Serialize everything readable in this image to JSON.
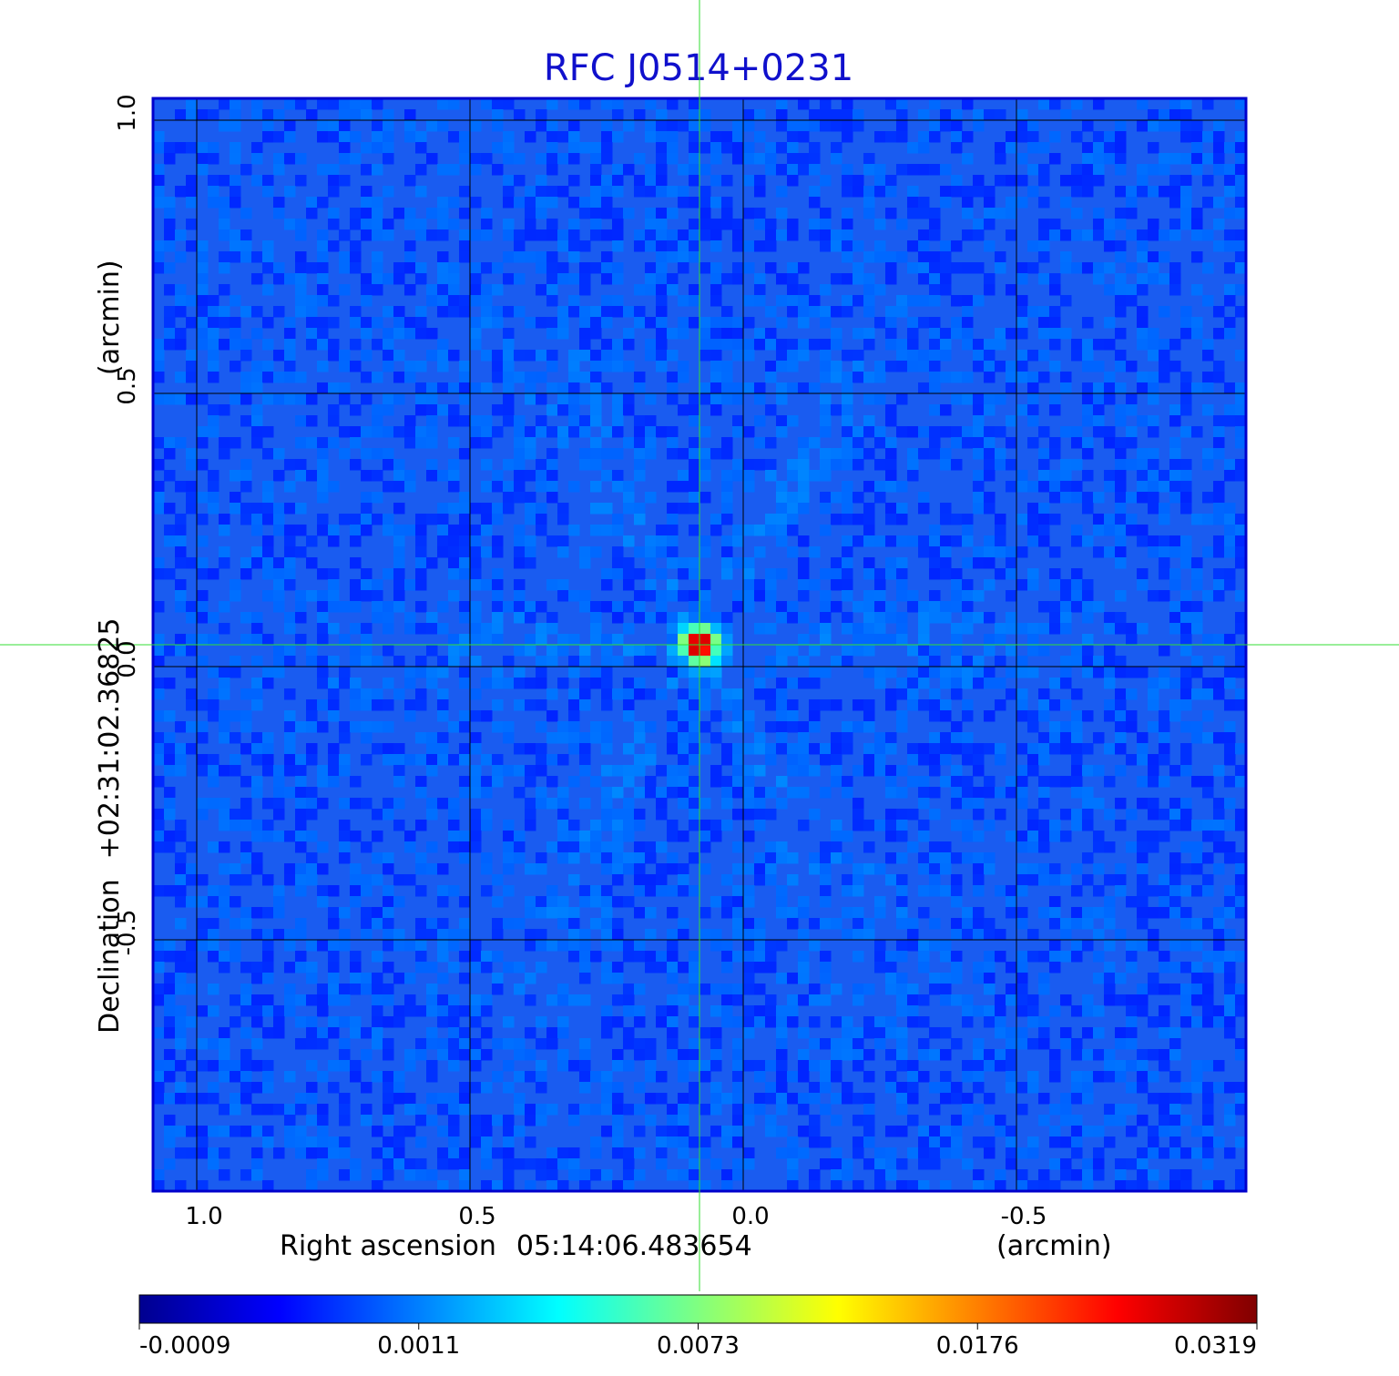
{
  "chart_data": {
    "type": "heatmap",
    "title": "RFC J0514+0231",
    "xlabel": "Right ascension",
    "x_center": "05:14:06.483654",
    "x_unit": "(arcmin)",
    "ylabel": "Declination",
    "y_center": "+02:31:02.36825",
    "y_unit": "(arcmin)",
    "x_ticks": [
      "1.0",
      "0.5",
      "0.0",
      "-0.5"
    ],
    "y_ticks": [
      "1.0",
      "0.5",
      "0.0",
      "-0.5"
    ],
    "xlim": [
      1.08,
      -0.92
    ],
    "ylim": [
      -0.96,
      1.04
    ],
    "grid": true,
    "crosshair": {
      "x": 0.08,
      "y": 0.04
    },
    "source_peak": {
      "x": 0.08,
      "y": 0.04,
      "value": 0.0319
    },
    "colorbar": {
      "ticks": [
        "-0.0009",
        "0.0011",
        "0.0073",
        "0.0176",
        "0.0319"
      ],
      "colormap": "jet",
      "min": -0.0009,
      "max": 0.0319
    },
    "colors": {
      "title": "#1010cc",
      "background": "#1a5cf0",
      "crosshair": "#33dd33",
      "grid": "#000000"
    }
  }
}
